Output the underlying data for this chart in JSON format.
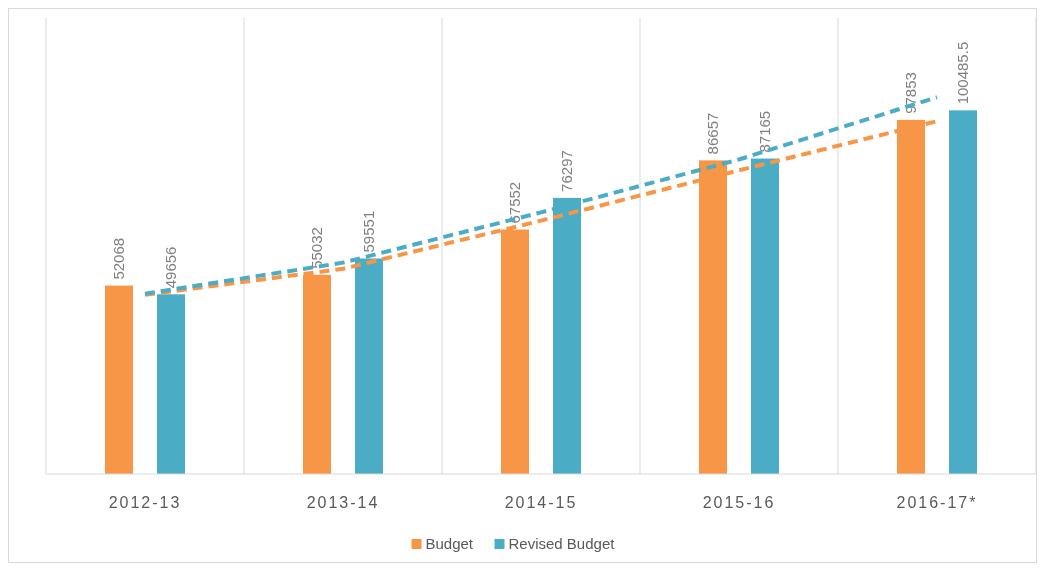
{
  "chart_data": {
    "type": "bar",
    "categories": [
      "2012-13",
      "2013-14",
      "2014-15",
      "2015-16",
      "2016-17*"
    ],
    "series": [
      {
        "name": "Budget",
        "color": "#f79646",
        "values": [
          52068,
          55032,
          67552,
          86657,
          97853
        ],
        "value_labels": [
          "52068",
          "55032",
          "67552",
          "86657",
          "97853"
        ]
      },
      {
        "name": "Revised Budget",
        "color": "#4bacc6",
        "values": [
          49656,
          59551,
          76297,
          87165,
          100485.5
        ],
        "value_labels": [
          "49656",
          "59551",
          "76297",
          "87165",
          "100485.5"
        ]
      },
      {
        "type": "line",
        "color": "#f79646",
        "line_style": "dashed",
        "values": [
          49500,
          56700,
          70000,
          83900,
          97500
        ]
      },
      {
        "type": "line",
        "color": "#4bacc6",
        "line_style": "dashed",
        "values": [
          49800,
          58400,
          72300,
          86900,
          104100
        ]
      }
    ],
    "ylim": [
      0,
      126000
    ],
    "grid": "x",
    "legend": "bottom",
    "tick_labels": "x"
  }
}
